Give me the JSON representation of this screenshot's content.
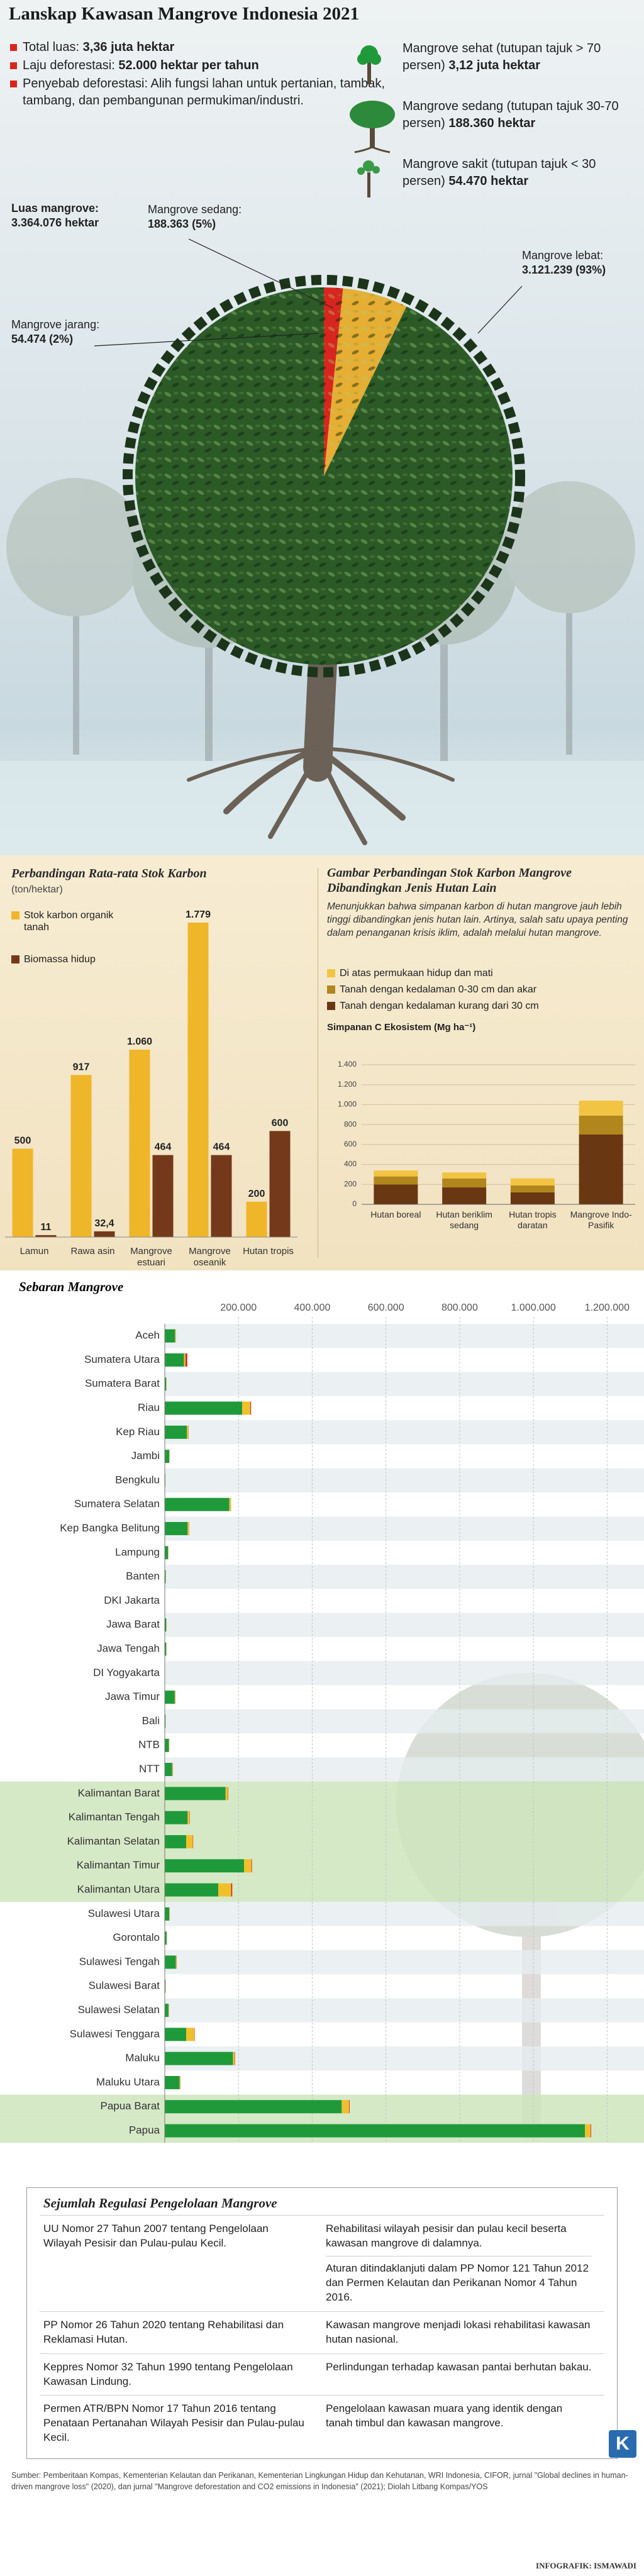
{
  "title": "Lanskap Kawasan Mangrove Indonesia 2021",
  "summary": [
    {
      "label": "Total luas:",
      "value": "3,36 juta hektar"
    },
    {
      "label": "Laju deforestasi:",
      "value": "52.000 hektar per tahun"
    },
    {
      "label": "Penyebab deforestasi:",
      "value": "Alih fungsi lahan untuk pertanian, tambak, tambang, dan pembangunan permukiman/industri."
    }
  ],
  "condition_legend": [
    {
      "label": "Mangrove sehat (tutupan tajuk > 70 persen)",
      "value": "3,12 juta hektar"
    },
    {
      "label": "Mangrove sedang (tutupan tajuk 30-70 persen)",
      "value": "188.360 hektar"
    },
    {
      "label": "Mangrove sakit (tutupan tajuk < 30 persen)",
      "value": "54.470 hektar"
    }
  ],
  "chart_data": [
    {
      "type": "pie",
      "total_label": "Luas mangrove:",
      "total_value": "3.364.076 hektar",
      "categories": [
        "Mangrove lebat:",
        "Mangrove sedang:",
        "Mangrove jarang:"
      ],
      "values": [
        3121239,
        188363,
        54474
      ],
      "value_labels": [
        "3.121.239 (93%)",
        "188.363 (5%)",
        "54.474 (2%)"
      ],
      "colors": [
        "#2c5a27",
        "#e6ae32",
        "#d8261f"
      ]
    },
    {
      "type": "bar",
      "title": "Perbandingan Rata-rata Stok Karbon",
      "subtitle": "(ton/hektar)",
      "categories": [
        "Lamun",
        "Rawa asin",
        "Mangrove estuari",
        "Mangrove oseanik",
        "Hutan tropis"
      ],
      "series": [
        {
          "name": "Stok karbon organik tanah",
          "color": "#f0b62a",
          "values": [
            500,
            917,
            1060,
            1779,
            200
          ],
          "value_labels": [
            "500",
            "917",
            "1.060",
            "1.779",
            "200"
          ]
        },
        {
          "name": "Biomassa hidup",
          "color": "#74391a",
          "values": [
            11,
            32.4,
            464,
            464,
            600
          ],
          "value_labels": [
            "11",
            "32,4",
            "464",
            "464",
            "600"
          ]
        }
      ]
    },
    {
      "type": "stacked-bar",
      "title": "Gambar Perbandingan Stok Karbon Mangrove Dibandingkan Jenis Hutan Lain",
      "description": "Menunjukkan bahwa simpanan karbon di hutan mangrove jauh lebih tinggi dibandingkan jenis hutan lain. Artinya, salah satu upaya penting dalam penanganan krisis iklim, adalah melalui hutan mangrove.",
      "y_label": "Simpanan C Ekosistem (Mg ha⁻¹)",
      "categories": [
        "Hutan boreal",
        "Hutan beriklim sedang",
        "Hutan tropis daratan",
        "Mangrove Indo-Pasifik"
      ],
      "series": [
        {
          "name": "Di atas permukaan hidup dan mati",
          "color": "#f2c443",
          "values": [
            60,
            60,
            70,
            150
          ]
        },
        {
          "name": "Tanah dengan kedalaman 0-30 cm dan akar",
          "color": "#b1861c",
          "values": [
            80,
            90,
            70,
            190
          ]
        },
        {
          "name": "Tanah dengan kedalaman kurang dari 30 cm",
          "color": "#6a3713",
          "values": [
            200,
            170,
            120,
            700
          ]
        }
      ],
      "ylim": [
        0,
        1400
      ],
      "yticks": [
        0,
        200,
        400,
        600,
        800,
        {
          "value": 1000,
          "label": "1.000"
        },
        {
          "value": 1200,
          "label": "1.200"
        },
        {
          "value": 1400,
          "label": "1.400"
        }
      ],
      "grid": true
    },
    {
      "type": "horizontal-stacked-bar",
      "title": "Sebaran Mangrove",
      "categories": [
        "Aceh",
        "Sumatera Utara",
        "Sumatera Barat",
        "Riau",
        "Kep Riau",
        "Jambi",
        "Bengkulu",
        "Sumatera Selatan",
        "Kep Bangka Belitung",
        "Lampung",
        "Banten",
        "DKI Jakarta",
        "Jawa Barat",
        "Jawa Tengah",
        "DI Yogyakarta",
        "Jawa Timur",
        "Bali",
        "NTB",
        "NTT",
        "Kalimantan Barat",
        "Kalimantan Tengah",
        "Kalimantan Selatan",
        "Kalimantan Timur",
        "Kalimantan Utara",
        "Sulawesi Utara",
        "Gorontalo",
        "Sulawesi Tengah",
        "Sulawesi Barat",
        "Sulawesi Selatan",
        "Sulawesi Tenggara",
        "Maluku",
        "Maluku Utara",
        "Papua Barat",
        "Papua"
      ],
      "series": [
        {
          "color": "#1f9a3a",
          "values": [
            28000,
            52000,
            4000,
            210000,
            60000,
            12000,
            1500,
            175000,
            62000,
            9000,
            2500,
            500,
            4000,
            4000,
            300,
            27000,
            2000,
            11000,
            20000,
            165000,
            62000,
            58000,
            215000,
            145000,
            12000,
            5000,
            30000,
            2000,
            10000,
            58000,
            185000,
            40000,
            480000,
            1140000
          ]
        },
        {
          "color": "#f0c02c",
          "values": [
            1500,
            4000,
            500,
            22000,
            4000,
            800,
            200,
            4000,
            4000,
            800,
            300,
            100,
            500,
            400,
            50,
            1500,
            200,
            800,
            1500,
            6000,
            5000,
            18000,
            20000,
            35000,
            1000,
            500,
            2000,
            300,
            1000,
            22000,
            5000,
            2000,
            20000,
            15000
          ]
        },
        {
          "color": "#d42a26",
          "values": [
            300,
            5000,
            100,
            2000,
            500,
            200,
            50,
            500,
            300,
            200,
            100,
            50,
            200,
            200,
            20,
            500,
            100,
            300,
            500,
            1000,
            800,
            1000,
            1500,
            3000,
            300,
            200,
            500,
            100,
            300,
            1000,
            1000,
            500,
            1500,
            1500
          ]
        }
      ],
      "xlim": [
        0,
        1300000
      ],
      "xticks": [
        {
          "value": 200000,
          "label": "200.000"
        },
        {
          "value": 400000,
          "label": "400.000"
        },
        {
          "value": 600000,
          "label": "600.000"
        },
        {
          "value": 800000,
          "label": "800.000"
        },
        {
          "value": 1000000,
          "label": "1.000.000"
        },
        {
          "value": 1200000,
          "label": "1.200.000"
        }
      ],
      "grid": true,
      "highlight": [
        19,
        20,
        21,
        22,
        23,
        32,
        33
      ]
    }
  ],
  "regulations": {
    "title": "Sejumlah Regulasi Pengelolaan Mangrove",
    "rows": [
      {
        "left": "UU Nomor 27 Tahun 2007 tentang Pengelolaan Wilayah Pesisir dan Pulau-pulau Kecil.",
        "right": [
          "Rehabilitasi wilayah pesisir dan pulau kecil beserta kawasan mangrove di dalamnya.",
          "Aturan ditindaklanjuti dalam PP Nomor 121 Tahun 2012 dan Permen Kelautan dan Perikanan Nomor 4 Tahun 2016."
        ]
      },
      {
        "left": "PP Nomor 26 Tahun 2020 tentang Rehabilitasi dan Reklamasi Hutan.",
        "right": [
          "Kawasan mangrove menjadi lokasi rehabilitasi kawasan hutan nasional."
        ]
      },
      {
        "left": "Keppres Nomor 32 Tahun 1990 tentang Pengelolaan Kawasan Lindung.",
        "right": [
          "Perlindungan terhadap kawasan pantai berhutan bakau."
        ]
      },
      {
        "left": "Permen ATR/BPN Nomor 17 Tahun 2016 tentang Penataan Pertanahan Wilayah Pesisir dan Pulau-pulau Kecil.",
        "right": [
          "Pengelolaan kawasan muara yang identik dengan tanah timbul dan kawasan mangrove."
        ]
      }
    ]
  },
  "source": "Sumber: Pemberitaan Kompas, Kementerian Kelautan dan Perikanan, Kementerian Lingkungan Hidup dan Kehutanan, WRI Indonesia, CIFOR, jurnal \"Global declines in human-driven mangrove loss\" (2020), dan jurnal \"Mangrove deforestation and CO2 emissions in Indonesia\" (2021); Diolah Litbang Kompas/YOS",
  "credit": "INFOGRAFIK: ISMAWADI",
  "logo": "K"
}
